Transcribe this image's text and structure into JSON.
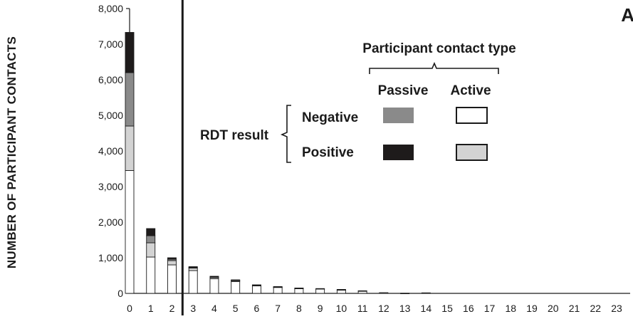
{
  "chart_data": {
    "type": "bar",
    "stacked": true,
    "panel_label": "A",
    "ylabel": "NUMBER OF PARTICIPANT CONTACTS",
    "xlabel": "",
    "ylim": [
      0,
      8000
    ],
    "y_ticks": [
      "0",
      "1,000",
      "2,000",
      "3,000",
      "4,000",
      "5,000",
      "6,000",
      "7,000",
      "8,000"
    ],
    "categories": [
      "0",
      "1",
      "2",
      "3",
      "4",
      "5",
      "6",
      "7",
      "8",
      "9",
      "10",
      "11",
      "12",
      "13",
      "14",
      "15",
      "16",
      "17",
      "18",
      "19",
      "20",
      "21",
      "22",
      "23"
    ],
    "divider_between": [
      "2",
      "3"
    ],
    "series": [
      {
        "name": "Active, Negative",
        "color": "#ffffff",
        "values": [
          3450,
          1020,
          800,
          640,
          410,
          330,
          210,
          170,
          140,
          130,
          100,
          70,
          20,
          5,
          15,
          0,
          0,
          0,
          0,
          0,
          0,
          0,
          0,
          0
        ]
      },
      {
        "name": "Active, Positive",
        "color": "#d3d3d3",
        "values": [
          1250,
          400,
          120,
          70,
          40,
          30,
          15,
          10,
          5,
          5,
          5,
          3,
          0,
          0,
          0,
          0,
          0,
          0,
          0,
          0,
          0,
          0,
          0,
          0
        ]
      },
      {
        "name": "Passive, Negative",
        "color": "#8a8a8a",
        "values": [
          1500,
          200,
          40,
          20,
          10,
          10,
          5,
          5,
          0,
          0,
          0,
          0,
          0,
          0,
          0,
          0,
          0,
          0,
          0,
          0,
          0,
          0,
          0,
          0
        ]
      },
      {
        "name": "Passive, Positive",
        "color": "#1e1b1b",
        "values": [
          1130,
          200,
          40,
          20,
          20,
          10,
          10,
          5,
          5,
          0,
          5,
          0,
          0,
          0,
          0,
          0,
          0,
          0,
          0,
          0,
          0,
          0,
          0,
          0
        ]
      }
    ],
    "legend": {
      "title": "Participant contact type",
      "column_headers": [
        "Passive",
        "Active"
      ],
      "row_group_label": "RDT result",
      "row_labels": [
        "Negative",
        "Positive"
      ]
    },
    "grid": false,
    "legend_position": "center"
  }
}
